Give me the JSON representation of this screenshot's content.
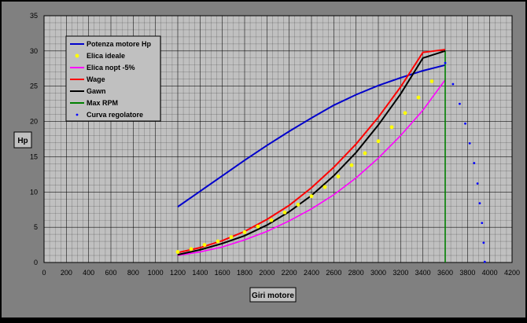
{
  "chart_data": {
    "type": "line",
    "title": "",
    "xlabel": "Giri motore",
    "ylabel": "Hp",
    "xlim": [
      0,
      4200
    ],
    "ylim": [
      0,
      35
    ],
    "x_ticks": [
      "0",
      "200",
      "400",
      "600",
      "800",
      "1000",
      "1200",
      "1400",
      "1600",
      "1800",
      "2000",
      "2200",
      "2400",
      "2600",
      "2800",
      "3000",
      "3200",
      "3400",
      "3600",
      "3800",
      "4000",
      "4200"
    ],
    "y_ticks": [
      "0",
      "5",
      "10",
      "15",
      "20",
      "25",
      "30",
      "35"
    ],
    "grid": true,
    "legend_position": "top-left",
    "colors": {
      "plot_bg": "#c0c0c0",
      "frame_bg": "#808080",
      "outer_bg": "#000000",
      "grid": "#000000"
    },
    "series": [
      {
        "name": "Potenza motore Hp",
        "style": "line",
        "color": "#0000cc",
        "x": [
          1200,
          1400,
          1600,
          1800,
          2000,
          2200,
          2400,
          2600,
          2800,
          3000,
          3200,
          3400,
          3600
        ],
        "y": [
          7.9,
          10.1,
          12.3,
          14.5,
          16.6,
          18.6,
          20.5,
          22.3,
          23.8,
          25.1,
          26.2,
          27.2,
          28.0
        ]
      },
      {
        "name": "Elica ideale",
        "style": "markers",
        "marker": "circle",
        "color": "#ffff00",
        "x": [
          1200,
          1320,
          1440,
          1560,
          1680,
          1800,
          1920,
          2040,
          2160,
          2280,
          2400,
          2520,
          2640,
          2760,
          2880,
          3000,
          3120,
          3240,
          3360,
          3480
        ],
        "y": [
          1.5,
          1.9,
          2.5,
          3.0,
          3.6,
          4.3,
          5.1,
          6.0,
          7.1,
          8.2,
          9.4,
          10.7,
          12.2,
          13.8,
          15.5,
          17.2,
          19.2,
          21.2,
          23.4,
          25.7
        ]
      },
      {
        "name": "Elica nopt -5%",
        "style": "line",
        "color": "#ff00ff",
        "x": [
          1200,
          1400,
          1600,
          1800,
          2000,
          2200,
          2400,
          2600,
          2800,
          3000,
          3200,
          3400,
          3600
        ],
        "y": [
          1.0,
          1.5,
          2.2,
          3.2,
          4.4,
          5.9,
          7.6,
          9.6,
          12.0,
          14.8,
          18.0,
          21.6,
          25.9
        ]
      },
      {
        "name": "Wage",
        "style": "line",
        "color": "#ff0000",
        "x": [
          1200,
          1400,
          1600,
          1800,
          2000,
          2200,
          2400,
          2600,
          2800,
          3000,
          3200,
          3400,
          3600
        ],
        "y": [
          1.4,
          2.1,
          3.1,
          4.4,
          6.1,
          8.1,
          10.6,
          13.5,
          16.8,
          20.6,
          24.9,
          29.8,
          30.2
        ]
      },
      {
        "name": "Gawn",
        "style": "line",
        "color": "#000000",
        "x": [
          1200,
          1400,
          1600,
          1800,
          2000,
          2200,
          2400,
          2600,
          2800,
          3000,
          3200,
          3400,
          3600
        ],
        "y": [
          1.1,
          1.8,
          2.7,
          3.8,
          5.3,
          7.2,
          9.5,
          12.3,
          15.6,
          19.5,
          23.9,
          29.0,
          30.0
        ]
      },
      {
        "name": "Max RPM",
        "style": "line",
        "color": "#008000",
        "x": [
          3600,
          3600
        ],
        "y": [
          0,
          30
        ]
      },
      {
        "name": "Curva regolatore",
        "style": "markers",
        "marker": "dot",
        "color": "#0000ff",
        "x": [
          3600,
          3670,
          3730,
          3780,
          3820,
          3860,
          3890,
          3910,
          3930,
          3945,
          3955
        ],
        "y": [
          28.3,
          25.3,
          22.5,
          19.7,
          16.9,
          14.1,
          11.2,
          8.4,
          5.6,
          2.8,
          0.1
        ]
      }
    ]
  }
}
